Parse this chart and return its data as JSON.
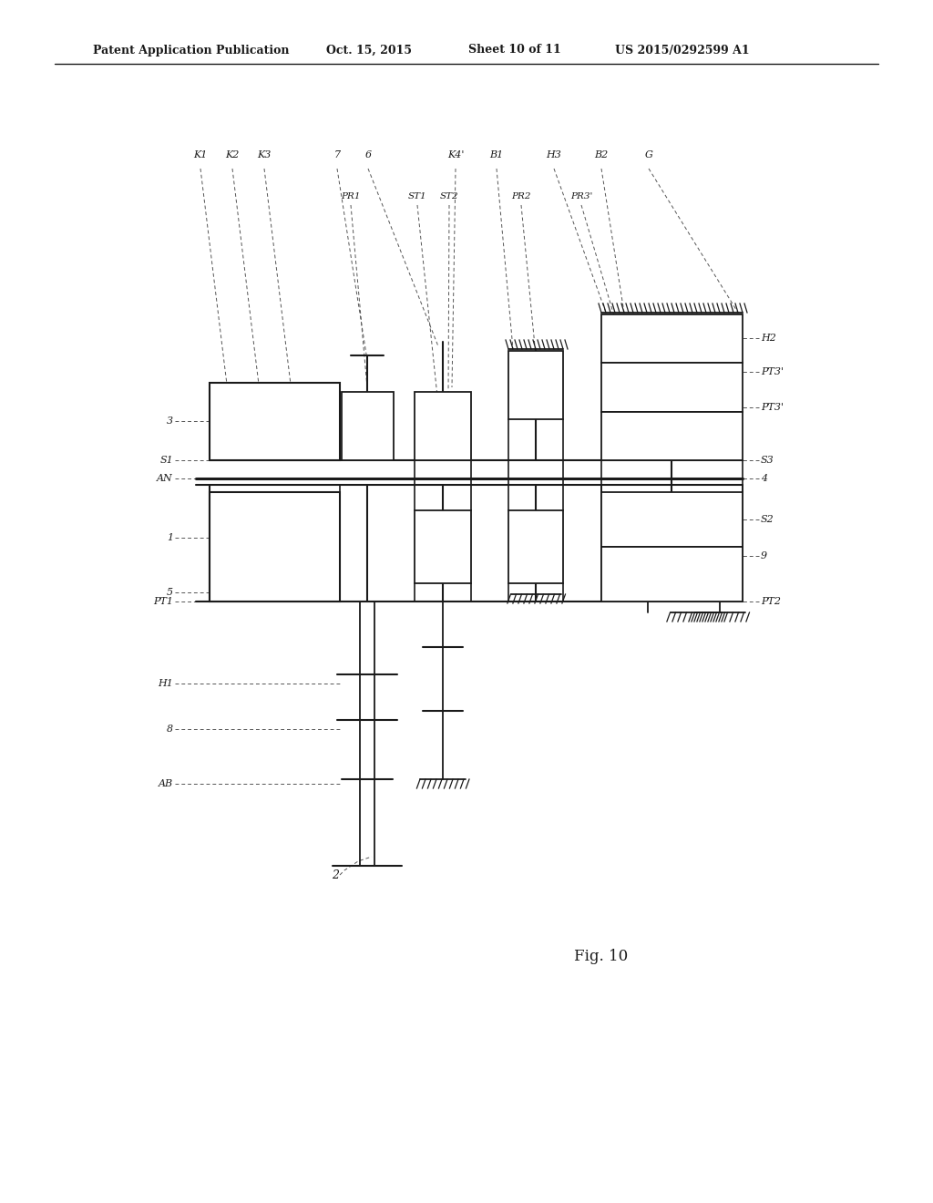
{
  "title": "Patent Application Publication",
  "date": "Oct. 15, 2015",
  "sheet": "Sheet 10 of 11",
  "patent": "US 2015/0292599 A1",
  "fig_label": "Fig. 10",
  "bg_color": "#ffffff",
  "line_color": "#1a1a1a",
  "text_color": "#1a1a1a"
}
